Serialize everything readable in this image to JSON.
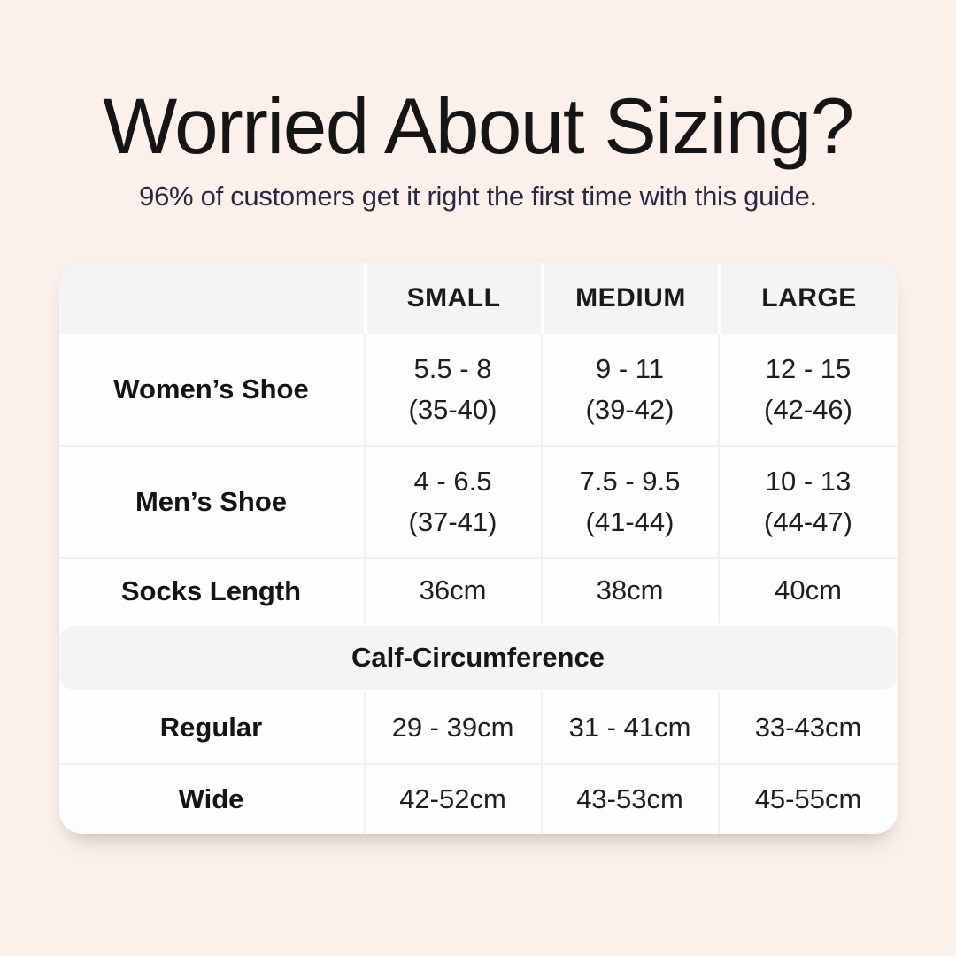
{
  "header": {
    "title": "Worried About Sizing?",
    "subtitle": "96% of customers get it right the first time with this guide."
  },
  "colors": {
    "page_background": "#FBF1EA",
    "title_text": "#151515",
    "subtitle_text": "#272741",
    "table_background": "#FDFDFD",
    "table_header_background": "#F4F4F4"
  },
  "table": {
    "columns": [
      "SMALL",
      "MEDIUM",
      "LARGE"
    ],
    "rows": [
      {
        "label": "Women’s Shoe",
        "small": [
          "5.5 - 8",
          "(35-40)"
        ],
        "medium": [
          "9 - 11",
          "(39-42)"
        ],
        "large": [
          "12 - 15",
          "(42-46)"
        ]
      },
      {
        "label": "Men’s Shoe",
        "small": [
          "4 - 6.5",
          "(37-41)"
        ],
        "medium": [
          "7.5 - 9.5",
          "(41-44)"
        ],
        "large": [
          "10 - 13",
          "(44-47)"
        ]
      },
      {
        "label": "Socks Length",
        "small": "36cm",
        "medium": "38cm",
        "large": "40cm"
      }
    ],
    "section": {
      "header": "Calf-Circumference",
      "rows": [
        {
          "label": "Regular",
          "small": "29 - 39cm",
          "medium": "31 - 41cm",
          "large": "33-43cm"
        },
        {
          "label": "Wide",
          "small": "42-52cm",
          "medium": "43-53cm",
          "large": "45-55cm"
        }
      ]
    }
  }
}
